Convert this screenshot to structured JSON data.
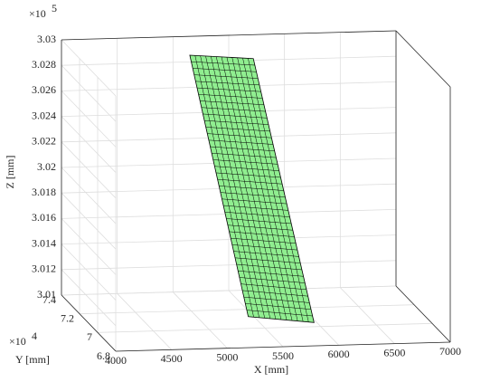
{
  "chart_data": {
    "type": "surface3d",
    "xlabel": "X [mm]",
    "ylabel": "Y [mm]",
    "zlabel": "Z [mm]",
    "xlim": [
      4000,
      7000
    ],
    "ylim": [
      68000,
      74000
    ],
    "zlim": [
      301000,
      303000
    ],
    "xticks": [
      4000,
      4500,
      5000,
      5500,
      6000,
      6500,
      7000
    ],
    "yticks": [
      {
        "value": 68000,
        "label": "6.8"
      },
      {
        "value": 70000,
        "label": "7"
      },
      {
        "value": 72000,
        "label": "7.2"
      },
      {
        "value": 74000,
        "label": "7.4"
      }
    ],
    "zticks": [
      {
        "value": 301000,
        "label": "3.01"
      },
      {
        "value": 301200,
        "label": "3.012"
      },
      {
        "value": 301400,
        "label": "3.014"
      },
      {
        "value": 301600,
        "label": "3.016"
      },
      {
        "value": 301800,
        "label": "3.018"
      },
      {
        "value": 302000,
        "label": "3.02"
      },
      {
        "value": 302200,
        "label": "3.022"
      },
      {
        "value": 302400,
        "label": "3.024"
      },
      {
        "value": 302600,
        "label": "3.026"
      },
      {
        "value": 302800,
        "label": "3.028"
      },
      {
        "value": 303000,
        "label": "3.03"
      }
    ],
    "y_exponent": {
      "base": "×10",
      "power": "4"
    },
    "z_exponent": {
      "base": "×10",
      "power": "5"
    },
    "grid": true,
    "surface": {
      "color": "#90ee90",
      "edgecolor": "#000000",
      "x": [
        5110,
        5680,
        5900,
        5310
      ],
      "y": [
        73500,
        73500,
        69500,
        69500
      ],
      "z": [
        302890,
        302850,
        301070,
        301130
      ]
    }
  }
}
